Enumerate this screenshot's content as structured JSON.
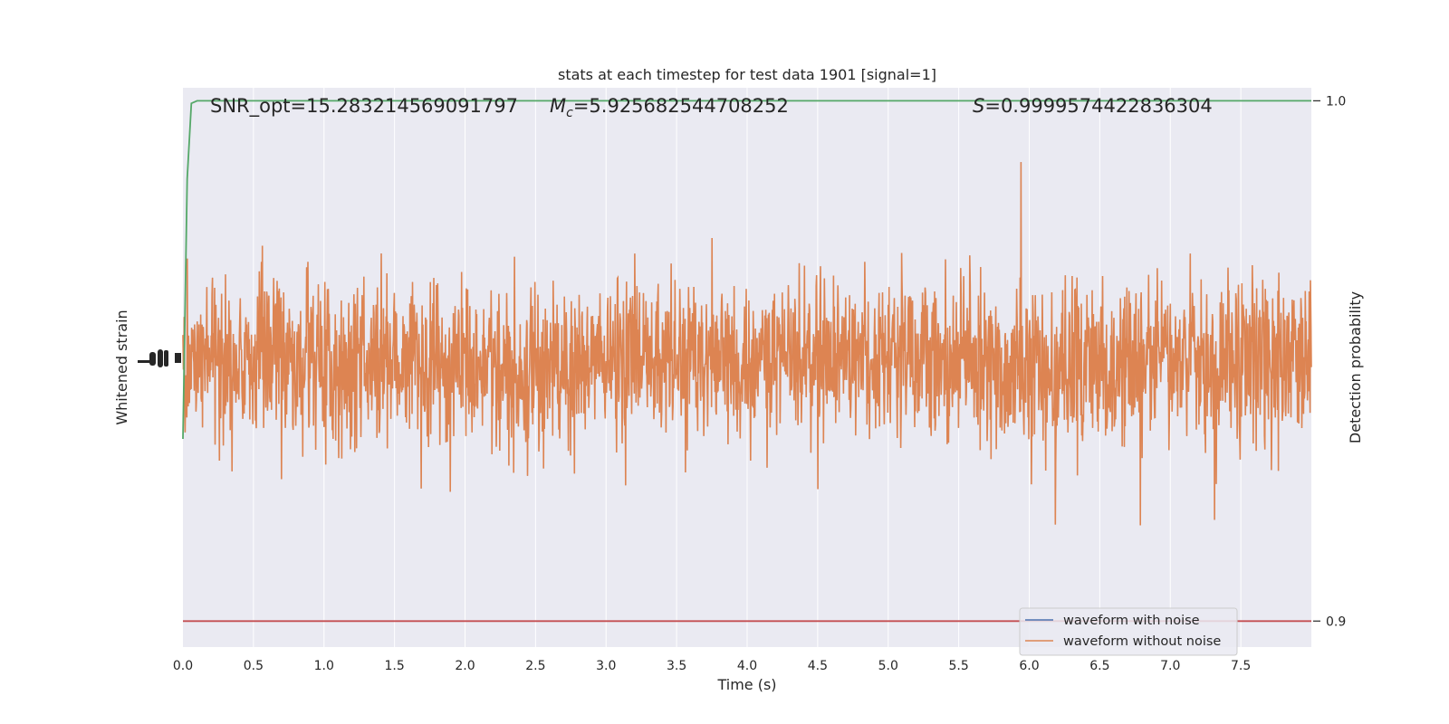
{
  "chart_data": {
    "type": "line",
    "title": "stats at each timestep for test data 1901 [signal=1]",
    "xlabel": "Time (s)",
    "ylabel_left": "Whitened strain",
    "ylabel_right": "Detection probability",
    "xlim": [
      0.0,
      8.0
    ],
    "x_ticks": [
      "0.0",
      "0.5",
      "1.0",
      "1.5",
      "2.0",
      "2.5",
      "3.0",
      "3.5",
      "4.0",
      "4.5",
      "5.0",
      "5.5",
      "6.0",
      "6.5",
      "7.0",
      "7.5"
    ],
    "y_right_lim": [
      0.895,
      1.0025
    ],
    "y_right_ticks": [
      "0.9",
      "1.0"
    ],
    "grid": true,
    "annotations": {
      "snr": "SNR_opt=15.283214569091797",
      "mc_symbol": "M",
      "mc_sub": "c",
      "mc_value": "=5.925682544708252",
      "s_symbol": "S",
      "s_value": "=0.9999574422836304"
    },
    "legend": {
      "placement": "lower-right",
      "entries": [
        {
          "label": "waveform with noise",
          "color": "#4c72b0"
        },
        {
          "label": "waveform without noise",
          "color": "#dd8452"
        }
      ]
    },
    "series": [
      {
        "name": "waveform with noise",
        "color": "#4c72b0",
        "axis": "left"
      },
      {
        "name": "waveform without noise",
        "color": "#dd8452",
        "axis": "left"
      },
      {
        "color": "#55a868",
        "axis": "right",
        "x": [
          0.0,
          0.03,
          0.06,
          0.1,
          0.2,
          8.0
        ],
        "y": [
          0.935,
          0.985,
          0.9995,
          1.0,
          1.0,
          1.0
        ]
      },
      {
        "color": "#c44e52",
        "axis": "right",
        "x": [
          0.0,
          8.0
        ],
        "y": [
          0.9,
          0.9
        ]
      }
    ],
    "colors": {
      "background": "#eaeaf2",
      "grid": "#ffffff"
    }
  }
}
